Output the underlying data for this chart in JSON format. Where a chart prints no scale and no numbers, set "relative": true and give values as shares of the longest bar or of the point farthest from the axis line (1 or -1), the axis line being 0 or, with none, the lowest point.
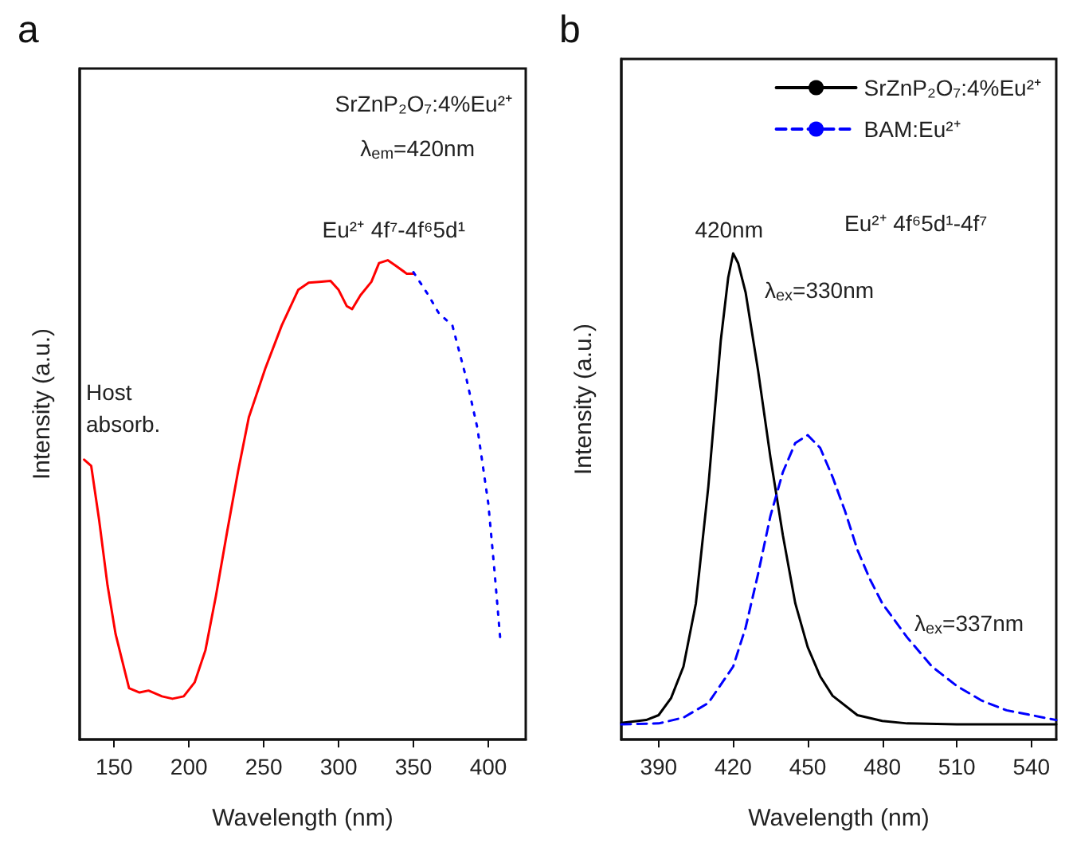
{
  "chart_data": [
    {
      "type": "line",
      "title": "a",
      "xlabel": "Wavelength (nm)",
      "ylabel": "Intensity (a.u.)",
      "relative": true,
      "xlim": [
        127,
        425
      ],
      "xticks": [
        150,
        200,
        250,
        300,
        350,
        400
      ],
      "grid": false,
      "legend": false,
      "marker": "none",
      "annotations": [
        "SrZnP₂O₇:4%Eu²⁺",
        "λ$_{em}$=420nm",
        "Eu²⁺ 4f⁷-4f⁶5d¹",
        "Host absorb."
      ],
      "series": [
        {
          "color": "#ff0000",
          "line_style": "solid",
          "x": [
            130,
            134.7,
            140,
            145.6,
            151,
            160,
            167,
            173,
            182,
            189,
            196.5,
            203.8,
            211,
            218,
            225.6,
            232.8,
            240,
            251,
            262,
            273,
            280,
            287,
            294.6,
            300,
            305.5,
            309,
            314.6,
            321.9,
            327,
            332.8,
            338,
            345.5,
            350
          ],
          "values": [
            0.584,
            0.571,
            0.458,
            0.322,
            0.22,
            0.107,
            0.098,
            0.102,
            0.09,
            0.085,
            0.09,
            0.119,
            0.186,
            0.299,
            0.435,
            0.559,
            0.672,
            0.774,
            0.864,
            0.938,
            0.953,
            0.955,
            0.957,
            0.938,
            0.904,
            0.898,
            0.927,
            0.955,
            0.994,
            1.0,
            0.989,
            0.972,
            0.972
          ]
        },
        {
          "color": "#0000ff",
          "line_style": "dotted",
          "x": [
            350,
            360,
            367,
            376,
            385.5,
            392.7,
            400,
            404,
            408
          ],
          "values": [
            0.975,
            0.927,
            0.889,
            0.864,
            0.751,
            0.65,
            0.492,
            0.356,
            0.209
          ]
        }
      ]
    },
    {
      "type": "line",
      "title": "b",
      "xlabel": "Wavelength (nm)",
      "ylabel": "Intensity (a.u.)",
      "relative": true,
      "xlim": [
        375,
        550
      ],
      "xticks": [
        390,
        420,
        450,
        480,
        510,
        540
      ],
      "grid": false,
      "legend": "top right",
      "marker": "none",
      "annotations": [
        "Eu²⁺ 4f⁶5d¹-4f⁷",
        {
          "text": "420nm",
          "x": 420,
          "y": 1.0
        },
        "λ$_{ex}$=330nm",
        "λ$_{ex}$=337nm"
      ],
      "series": [
        {
          "name": "SrZnP₂O₇:4%Eu²⁺",
          "color": "#000000",
          "line_style": "solid",
          "x": [
            375,
            385,
            390,
            395,
            400,
            405,
            410,
            415,
            418,
            420,
            422,
            425,
            430,
            435,
            440,
            445,
            450,
            455,
            460,
            470,
            480,
            490,
            510,
            550
          ],
          "values": [
            0.034,
            0.04,
            0.05,
            0.085,
            0.15,
            0.28,
            0.52,
            0.82,
            0.95,
            1.0,
            0.98,
            0.92,
            0.76,
            0.58,
            0.42,
            0.28,
            0.19,
            0.13,
            0.09,
            0.05,
            0.038,
            0.033,
            0.031,
            0.031
          ]
        },
        {
          "name": "BAM:Eu²⁺",
          "color": "#0000ff",
          "line_style": "dashed",
          "x": [
            375,
            390,
            400,
            410,
            420,
            425,
            430,
            435,
            440,
            445,
            450,
            455,
            460,
            465,
            470,
            475,
            480,
            490,
            500,
            510,
            520,
            530,
            540,
            550
          ],
          "values": [
            0.031,
            0.033,
            0.045,
            0.075,
            0.15,
            0.23,
            0.34,
            0.46,
            0.55,
            0.61,
            0.626,
            0.6,
            0.54,
            0.47,
            0.39,
            0.33,
            0.28,
            0.21,
            0.15,
            0.11,
            0.08,
            0.06,
            0.05,
            0.04
          ]
        }
      ]
    }
  ]
}
